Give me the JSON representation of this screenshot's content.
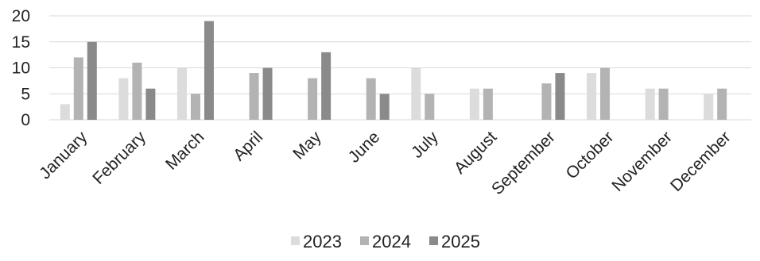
{
  "chart_data": {
    "type": "bar",
    "title": "",
    "xlabel": "",
    "ylabel": "",
    "ylim": [
      0,
      20
    ],
    "yticks": [
      0,
      5,
      10,
      15,
      20
    ],
    "grid": true,
    "legend_position": "bottom",
    "categories": [
      "January",
      "February",
      "March",
      "April",
      "May",
      "June",
      "July",
      "August",
      "September",
      "October",
      "November",
      "December"
    ],
    "series": [
      {
        "name": "2023",
        "color": "#dcdcdc",
        "values": [
          3,
          8,
          10,
          null,
          null,
          null,
          10,
          6,
          null,
          9,
          6,
          5
        ]
      },
      {
        "name": "2024",
        "color": "#b3b3b3",
        "values": [
          12,
          11,
          5,
          9,
          8,
          8,
          5,
          6,
          7,
          10,
          6,
          6
        ]
      },
      {
        "name": "2025",
        "color": "#8a8a8a",
        "values": [
          15,
          6,
          19,
          10,
          13,
          5,
          null,
          null,
          9,
          null,
          null,
          null
        ]
      }
    ]
  }
}
